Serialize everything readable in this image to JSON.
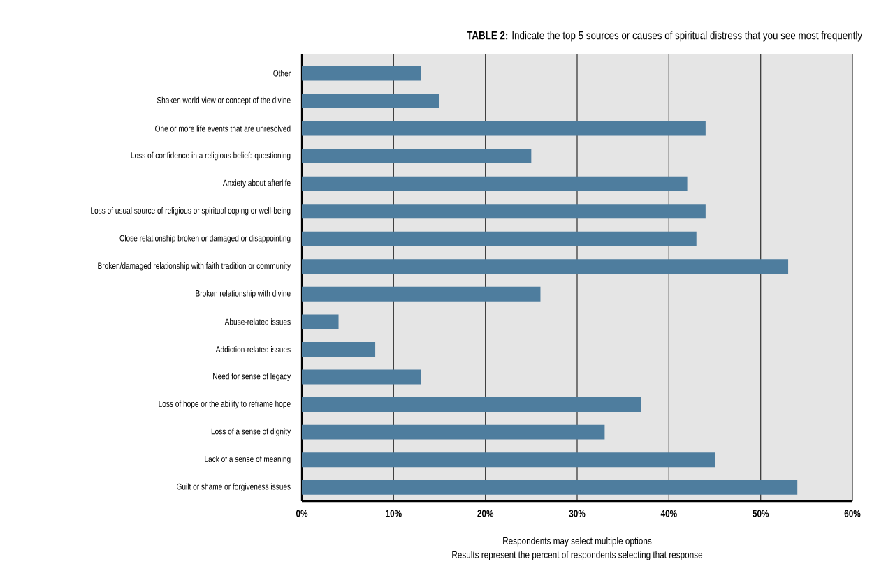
{
  "chart_data": {
    "type": "bar",
    "orientation": "horizontal",
    "title": "**TABLE 2:** Indicate the top 5 sources or causes of spiritual distress that you see most frequently",
    "categories": [
      "Other",
      "Shaken world view or concept of the divine",
      "One or more life events that are unresolved",
      "Loss of confidence in a religious belief: questioning",
      "Anxiety about afterlife",
      "Loss of usual source of religious or spiritual coping or well-being",
      "Close relationship broken or damaged or disappointing",
      "Broken/damaged relationship with faith tradition or community",
      "Broken relationship with divine",
      "Abuse-related issues",
      "Addiction-related issues",
      "Need for sense of legacy",
      "Loss of hope or the ability to reframe hope",
      "Loss of a sense of dignity",
      "Lack of a sense of meaning",
      "Guilt or shame or forgiveness issues"
    ],
    "values": [
      13,
      15,
      44,
      25,
      42,
      44,
      43,
      53,
      26,
      4,
      8,
      13,
      37,
      33,
      45,
      54
    ],
    "color": "#4e7d9e",
    "xlim": [
      0,
      60
    ],
    "xticks": [
      {
        "value": 0,
        "label": "0%"
      },
      {
        "value": 10,
        "label": "10%"
      },
      {
        "value": 20,
        "label": "20%"
      },
      {
        "value": 30,
        "label": "30%"
      },
      {
        "value": 40,
        "label": "40%"
      },
      {
        "value": 50,
        "label": "50%"
      },
      {
        "value": 60,
        "label": "60%"
      }
    ],
    "grid": "x",
    "annotations": [
      "Respondents may select multiple options",
      "Results represent the percent of respondents selecting that response"
    ]
  }
}
